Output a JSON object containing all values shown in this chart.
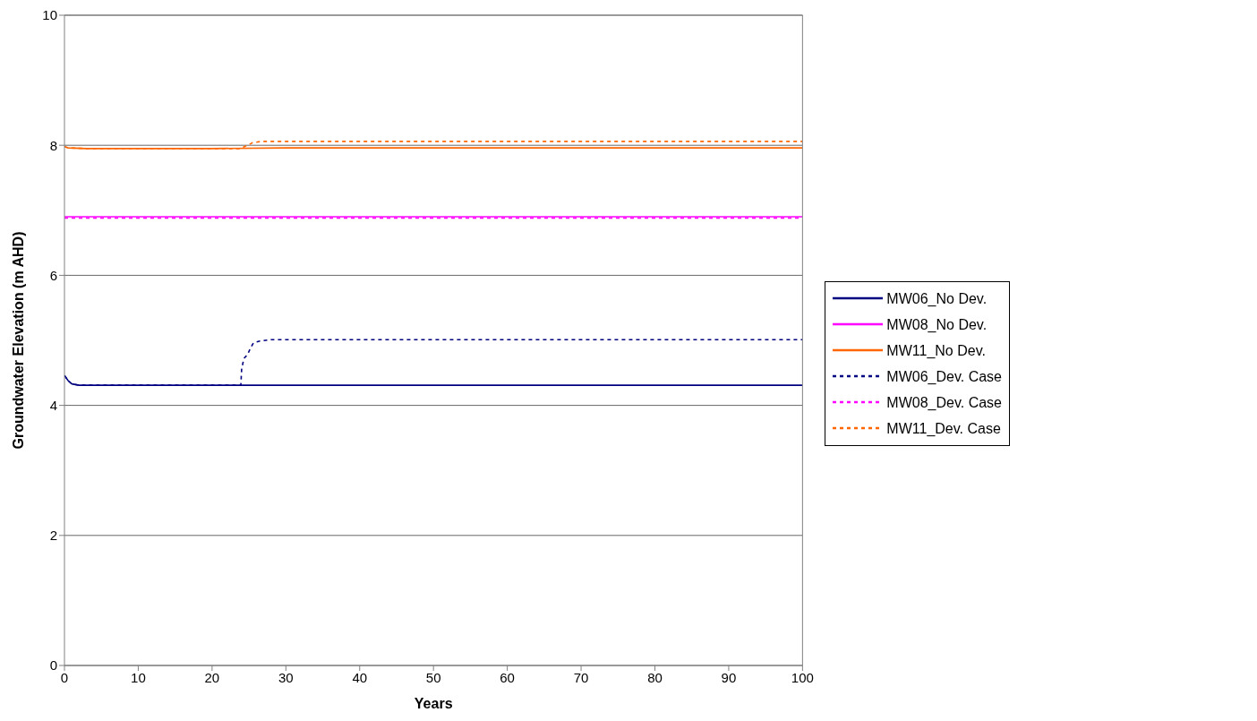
{
  "chart_data": {
    "type": "line",
    "xlabel": "Years",
    "ylabel": "Groundwater Elevation (m AHD)",
    "xlim": [
      0,
      100
    ],
    "xticks": [
      0,
      10,
      20,
      30,
      40,
      50,
      60,
      70,
      80,
      90,
      100
    ],
    "ylim": [
      0,
      10
    ],
    "yticks": [
      0,
      2,
      4,
      6,
      8,
      10
    ],
    "grid": "y",
    "legend": "right",
    "marker": "none",
    "series": [
      {
        "name": "MW06_No Dev.",
        "color": "#000080",
        "line_style": "solid",
        "x": [
          0,
          0.5,
          1,
          2,
          3,
          5,
          10,
          20,
          30,
          40,
          60,
          80,
          100
        ],
        "values": [
          4.46,
          4.38,
          4.33,
          4.31,
          4.31,
          4.31,
          4.31,
          4.31,
          4.31,
          4.31,
          4.31,
          4.31,
          4.31
        ]
      },
      {
        "name": "MW08_No Dev.",
        "color": "#ff00ff",
        "line_style": "solid",
        "x": [
          0,
          20,
          40,
          60,
          80,
          100
        ],
        "values": [
          6.9,
          6.9,
          6.9,
          6.9,
          6.9,
          6.9
        ]
      },
      {
        "name": "MW11_No Dev.",
        "color": "#ff6600",
        "line_style": "solid",
        "x": [
          0,
          0.5,
          3,
          10,
          20,
          30,
          40,
          60,
          80,
          100
        ],
        "values": [
          7.98,
          7.96,
          7.95,
          7.95,
          7.95,
          7.96,
          7.96,
          7.96,
          7.96,
          7.96
        ]
      },
      {
        "name": "MW06_Dev. Case",
        "color": "#000080",
        "line_style": "dashed",
        "x": [
          0,
          0.5,
          1,
          2,
          3,
          10,
          20,
          23.9,
          24,
          24.3,
          24.8,
          25.2,
          25.6,
          26.5,
          28,
          30,
          40,
          60,
          80,
          100
        ],
        "values": [
          4.46,
          4.38,
          4.33,
          4.31,
          4.31,
          4.31,
          4.31,
          4.31,
          4.55,
          4.72,
          4.78,
          4.88,
          4.96,
          4.99,
          5.01,
          5.01,
          5.01,
          5.01,
          5.01,
          5.01
        ]
      },
      {
        "name": "MW08_Dev. Case",
        "color": "#ff00ff",
        "line_style": "dashed",
        "x": [
          0,
          20,
          40,
          60,
          80,
          100
        ],
        "values": [
          6.88,
          6.88,
          6.88,
          6.88,
          6.88,
          6.88
        ]
      },
      {
        "name": "MW11_Dev. Case",
        "color": "#ff6600",
        "line_style": "dashed",
        "x": [
          0,
          0.5,
          3,
          10,
          20,
          23.8,
          25,
          25.5,
          26.7,
          30,
          40,
          60,
          80,
          100
        ],
        "values": [
          7.98,
          7.96,
          7.95,
          7.95,
          7.95,
          7.95,
          8.01,
          8.04,
          8.06,
          8.06,
          8.06,
          8.06,
          8.06,
          8.06
        ]
      }
    ]
  }
}
